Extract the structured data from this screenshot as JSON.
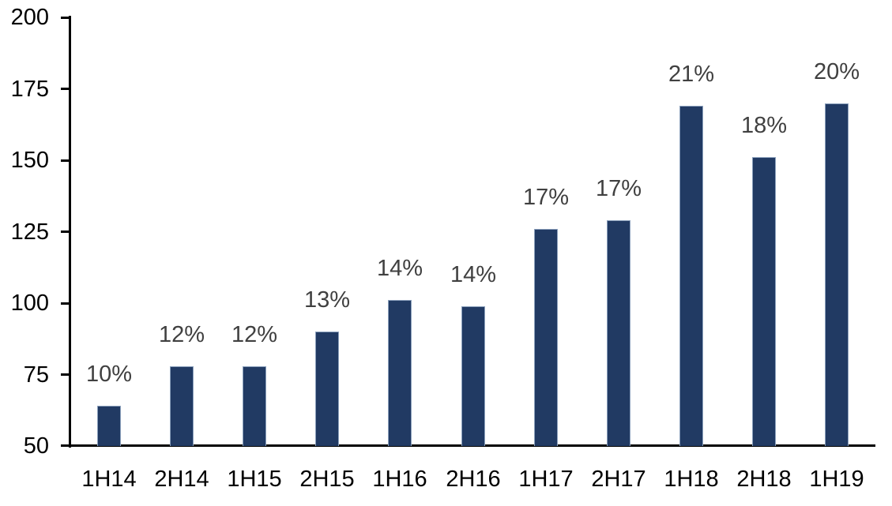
{
  "chart_data": {
    "type": "bar",
    "title": "",
    "xlabel": "",
    "ylabel": "",
    "categories": [
      "1H14",
      "2H14",
      "1H15",
      "2H15",
      "1H16",
      "2H16",
      "1H17",
      "2H17",
      "1H18",
      "2H18",
      "1H19"
    ],
    "values": [
      64,
      78,
      78,
      90,
      101,
      99,
      126,
      129,
      169,
      151,
      170
    ],
    "data_labels": [
      "10%",
      "12%",
      "12%",
      "13%",
      "14%",
      "14%",
      "17%",
      "17%",
      "21%",
      "18%",
      "20%"
    ],
    "ylim": [
      50,
      200
    ],
    "yticks": [
      50,
      75,
      100,
      125,
      150,
      175,
      200
    ],
    "grid": false,
    "legend": false,
    "colors": {
      "bar_fill": "#213A63",
      "bar_border": "#8BA0BC",
      "data_label": "#404040",
      "axis_text": "#000000",
      "axis_line": "#000000",
      "background": "#ffffff"
    }
  }
}
